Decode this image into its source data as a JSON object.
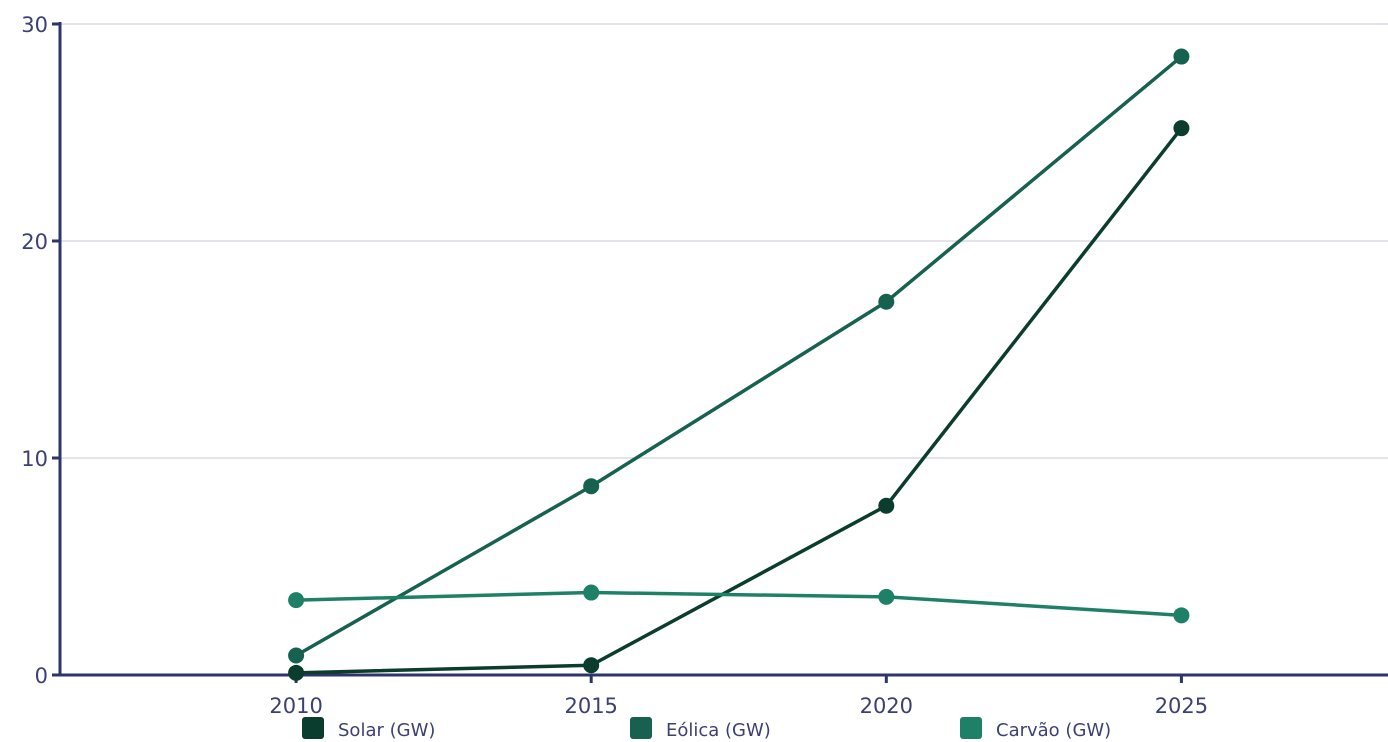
{
  "chart_data": {
    "type": "line",
    "title": "",
    "xlabel": "",
    "ylabel": "",
    "x": [
      2010,
      2015,
      2020,
      2025
    ],
    "xlim": [
      2006,
      2028.5
    ],
    "ylim": [
      0,
      30
    ],
    "yticks": [
      0,
      10,
      20,
      30
    ],
    "grid": true,
    "legend_position": "bottom",
    "series": [
      {
        "name": "Solar (GW)",
        "color": "#0b3d2e",
        "values": [
          0.1,
          0.45,
          7.8,
          25.2
        ]
      },
      {
        "name": "Eólica (GW)",
        "color": "#16614f",
        "values": [
          0.9,
          8.7,
          17.2,
          28.5
        ]
      },
      {
        "name": "Carvão (GW)",
        "color": "#1f8068",
        "values": [
          3.45,
          3.8,
          3.6,
          2.75
        ]
      }
    ],
    "axis_color": "#2e3568",
    "grid_color": "#d0d4dc"
  }
}
